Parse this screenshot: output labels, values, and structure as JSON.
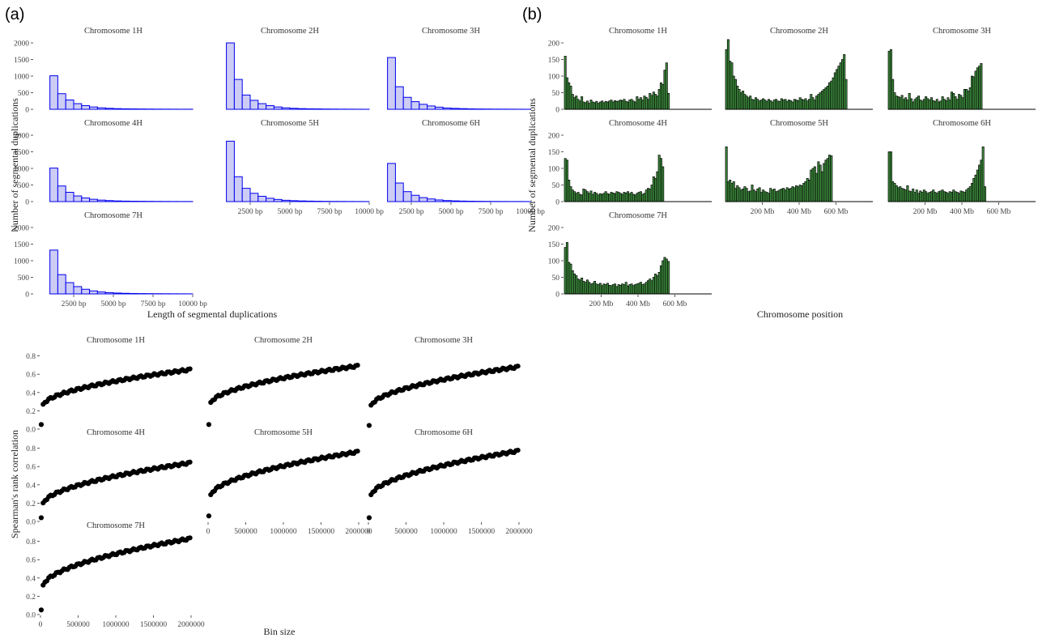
{
  "figure": {
    "panel_a_label": "(a)",
    "panel_b_label": "(b)"
  },
  "colors": {
    "hist_fill": "#ccccf5",
    "hist_stroke": "#0000ee",
    "pos_fill": "#3f8f3f",
    "pos_stroke": "#000000",
    "point": "#000000"
  },
  "chart_data": [
    {
      "id": "length_hist",
      "type": "bar",
      "xlabel": "Length of segmental duplications",
      "ylabel": "Number of segmental duplications",
      "xlim": [
        0,
        10000
      ],
      "ylim": [
        0,
        2000
      ],
      "x_ticks": [
        2500,
        5000,
        7500,
        10000
      ],
      "x_tick_labels": [
        "2500 bp",
        "5000 bp",
        "7500 bp",
        "10000 bp"
      ],
      "y_ticks": [
        0,
        500,
        1000,
        1500,
        2000
      ],
      "y_tick_labels": [
        "0",
        "500",
        "1000",
        "1500",
        "2000"
      ],
      "bin_edges": [
        1000,
        1500,
        2000,
        2500,
        3000,
        3500,
        4000,
        4500,
        5000,
        5500,
        6000,
        6500,
        7000,
        7500,
        8000,
        8500,
        9000,
        9500,
        10000
      ],
      "series": [
        {
          "name": "Chromosome 1H",
          "values": [
            1010,
            470,
            280,
            170,
            110,
            70,
            45,
            30,
            20,
            15,
            12,
            10,
            8,
            6,
            5,
            4,
            3,
            3
          ]
        },
        {
          "name": "Chromosome 2H",
          "values": [
            2000,
            900,
            430,
            270,
            170,
            110,
            70,
            45,
            30,
            20,
            15,
            12,
            9,
            7,
            5,
            4,
            3,
            2
          ]
        },
        {
          "name": "Chromosome 3H",
          "values": [
            1560,
            680,
            360,
            230,
            150,
            100,
            65,
            40,
            28,
            20,
            14,
            10,
            8,
            6,
            5,
            4,
            3,
            2
          ]
        },
        {
          "name": "Chromosome 4H",
          "values": [
            1010,
            470,
            280,
            170,
            110,
            70,
            45,
            30,
            20,
            15,
            12,
            10,
            8,
            6,
            5,
            4,
            3,
            3
          ]
        },
        {
          "name": "Chromosome 5H",
          "values": [
            1820,
            750,
            400,
            250,
            160,
            100,
            65,
            40,
            28,
            20,
            15,
            11,
            8,
            6,
            5,
            4,
            3,
            2
          ]
        },
        {
          "name": "Chromosome 6H",
          "values": [
            1150,
            560,
            300,
            190,
            120,
            80,
            50,
            32,
            22,
            16,
            12,
            9,
            7,
            5,
            4,
            3,
            3,
            2
          ]
        },
        {
          "name": "Chromosome 7H",
          "values": [
            1320,
            580,
            340,
            220,
            140,
            90,
            58,
            38,
            26,
            18,
            13,
            10,
            8,
            6,
            5,
            4,
            3,
            2
          ]
        }
      ]
    },
    {
      "id": "position_hist",
      "type": "bar",
      "xlabel": "Chromosome position",
      "ylabel": "Number of segmental duplications",
      "xlim": [
        0,
        800
      ],
      "ylim": [
        0,
        200
      ],
      "x_ticks": [
        200,
        400,
        600
      ],
      "x_tick_labels": [
        "200 Mb",
        "400 Mb",
        "600 Mb"
      ],
      "y_ticks": [
        0,
        50,
        100,
        150,
        200
      ],
      "y_tick_labels": [
        "0",
        "50",
        "100",
        "150",
        "200"
      ],
      "bin_width_mb": 10,
      "series": [
        {
          "name": "Chromosome 1H",
          "values": [
            160,
            95,
            80,
            70,
            45,
            35,
            40,
            30,
            25,
            38,
            22,
            20,
            25,
            18,
            28,
            22,
            20,
            24,
            18,
            22,
            25,
            20,
            24,
            22,
            25,
            28,
            22,
            26,
            24,
            25,
            28,
            26,
            30,
            24,
            22,
            28,
            30,
            25,
            22,
            38,
            30,
            35,
            28,
            40,
            36,
            30,
            48,
            42,
            52,
            45,
            40,
            60,
            80,
            75,
            118,
            140,
            48
          ]
        },
        {
          "name": "Chromosome 2H",
          "values": [
            180,
            210,
            145,
            140,
            100,
            90,
            70,
            60,
            50,
            55,
            45,
            40,
            35,
            40,
            30,
            28,
            35,
            30,
            25,
            28,
            32,
            28,
            24,
            30,
            26,
            22,
            28,
            30,
            25,
            24,
            32,
            28,
            30,
            24,
            28,
            26,
            22,
            30,
            28,
            26,
            35,
            30,
            28,
            32,
            25,
            30,
            45,
            35,
            28,
            40,
            45,
            50,
            55,
            60,
            65,
            70,
            80,
            85,
            95,
            110,
            120,
            130,
            140,
            150,
            165,
            90
          ]
        },
        {
          "name": "Chromosome 3H",
          "values": [
            175,
            180,
            90,
            50,
            40,
            38,
            35,
            42,
            30,
            35,
            28,
            48,
            32,
            22,
            30,
            35,
            40,
            28,
            25,
            30,
            38,
            32,
            28,
            35,
            26,
            24,
            30,
            22,
            25,
            38,
            30,
            26,
            35,
            28,
            52,
            48,
            38,
            30,
            45,
            42,
            35,
            60,
            60,
            55,
            65,
            100,
            98,
            115,
            125,
            130,
            138
          ]
        },
        {
          "name": "Chromosome 4H",
          "values": [
            130,
            125,
            65,
            45,
            35,
            30,
            25,
            28,
            22,
            20,
            38,
            35,
            30,
            25,
            32,
            22,
            28,
            25,
            20,
            24,
            22,
            25,
            30,
            24,
            22,
            28,
            26,
            24,
            30,
            28,
            25,
            22,
            28,
            26,
            30,
            24,
            28,
            22,
            20,
            25,
            28,
            30,
            22,
            25,
            35,
            40,
            38,
            50,
            75,
            70,
            90,
            140,
            130,
            105
          ]
        },
        {
          "name": "Chromosome 5H",
          "values": [
            165,
            60,
            65,
            55,
            60,
            40,
            48,
            42,
            35,
            38,
            45,
            40,
            30,
            32,
            50,
            35,
            30,
            38,
            42,
            28,
            35,
            30,
            28,
            25,
            40,
            35,
            38,
            30,
            32,
            35,
            38,
            40,
            35,
            42,
            38,
            40,
            45,
            42,
            48,
            45,
            50,
            48,
            55,
            60,
            70,
            65,
            95,
            100,
            105,
            85,
            120,
            110,
            90,
            115,
            125,
            130,
            140,
            138
          ]
        },
        {
          "name": "Chromosome 6H",
          "values": [
            150,
            150,
            60,
            55,
            48,
            42,
            45,
            40,
            38,
            35,
            48,
            32,
            30,
            38,
            28,
            35,
            25,
            32,
            28,
            35,
            30,
            25,
            28,
            30,
            35,
            28,
            25,
            30,
            32,
            35,
            30,
            28,
            25,
            30,
            28,
            35,
            30,
            28,
            25,
            32,
            30,
            28,
            35,
            40,
            45,
            55,
            70,
            80,
            95,
            110,
            125,
            165,
            45
          ]
        },
        {
          "name": "Chromosome 7H",
          "values": [
            140,
            155,
            95,
            90,
            70,
            60,
            55,
            45,
            42,
            48,
            38,
            35,
            42,
            35,
            30,
            32,
            38,
            30,
            28,
            32,
            25,
            30,
            28,
            32,
            26,
            25,
            28,
            30,
            22,
            28,
            26,
            30,
            28,
            35,
            24,
            28,
            30,
            25,
            28,
            30,
            32,
            35,
            28,
            30,
            35,
            40,
            45,
            40,
            50,
            60,
            55,
            65,
            85,
            100,
            110,
            105,
            98
          ]
        }
      ]
    },
    {
      "id": "bin_correlation",
      "type": "scatter",
      "xlabel": "Bin size",
      "ylabel": "Spearman's rank correlation",
      "xlim": [
        0,
        2000000
      ],
      "ylim": [
        0,
        0.85
      ],
      "x_ticks": [
        0,
        500000,
        1000000,
        1500000,
        2000000
      ],
      "x_tick_labels": [
        "0",
        "500000",
        "1000000",
        "1500000",
        "2000000"
      ],
      "y_ticks": [
        0,
        0.2,
        0.4,
        0.6,
        0.8
      ],
      "y_tick_labels": [
        "0.0",
        "0.2",
        "0.4",
        "0.6",
        "0.8"
      ],
      "x_start": 10000,
      "x_step": 25000,
      "x_count": 80,
      "series": [
        {
          "name": "Chromosome 1H",
          "first": 0.05,
          "second": 0.26,
          "end": 0.65
        },
        {
          "name": "Chromosome 2H",
          "first": 0.05,
          "second": 0.28,
          "end": 0.69
        },
        {
          "name": "Chromosome 3H",
          "first": 0.04,
          "second": 0.25,
          "end": 0.68
        },
        {
          "name": "Chromosome 4H",
          "first": 0.04,
          "second": 0.19,
          "end": 0.64
        },
        {
          "name": "Chromosome 5H",
          "first": 0.06,
          "second": 0.28,
          "end": 0.76
        },
        {
          "name": "Chromosome 6H",
          "first": 0.04,
          "second": 0.28,
          "end": 0.77
        },
        {
          "name": "Chromosome 7H",
          "first": 0.05,
          "second": 0.31,
          "end": 0.83
        }
      ]
    }
  ]
}
